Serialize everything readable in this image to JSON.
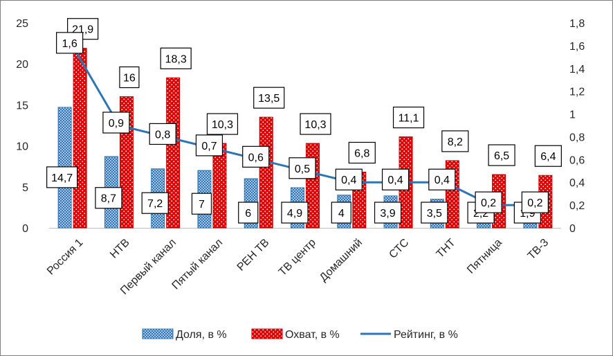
{
  "chart_data": {
    "type": "bar",
    "categories": [
      "Россия 1",
      "НТВ",
      "Первый канал",
      "Пятый канал",
      "РЕН ТВ",
      "ТВ центр",
      "Домашний",
      "СТС",
      "ТНТ",
      "Пятница",
      "ТВ-3"
    ],
    "series": [
      {
        "name": "Доля, в %",
        "type": "bar",
        "axis": "left",
        "values": [
          14.7,
          8.7,
          7.2,
          7,
          6,
          4.9,
          4,
          3.9,
          3.5,
          2.2,
          1.9
        ],
        "labels": [
          "14,7",
          "8,7",
          "7,2",
          "7",
          "6",
          "4,9",
          "4",
          "3,9",
          "3,5",
          "2,2",
          "1,9"
        ],
        "color": "#2e75b6"
      },
      {
        "name": "Охват, в %",
        "type": "bar",
        "axis": "left",
        "values": [
          21.9,
          16,
          18.3,
          10.3,
          13.5,
          10.3,
          6.8,
          11.1,
          8.2,
          6.5,
          6.4
        ],
        "labels": [
          "21,9",
          "16",
          "18,3",
          "10,3",
          "13,5",
          "10,3",
          "6,8",
          "11,1",
          "8,2",
          "6,5",
          "6,4"
        ],
        "color": "#c00000"
      },
      {
        "name": "Рейтинг, в %",
        "type": "line",
        "axis": "right",
        "values": [
          1.6,
          0.9,
          0.8,
          0.7,
          0.6,
          0.5,
          0.4,
          0.4,
          0.4,
          0.2,
          0.2
        ],
        "labels": [
          "1,6",
          "0,9",
          "0,8",
          "0,7",
          "0,6",
          "0,5",
          "0,4",
          "0,4",
          "0,4",
          "0,2",
          "0,2"
        ],
        "color": "#2e75b6"
      }
    ],
    "y_left": {
      "min": 0,
      "max": 25,
      "ticks": [
        "0",
        "5",
        "10",
        "15",
        "20",
        "25"
      ]
    },
    "y_right": {
      "min": 0,
      "max": 1.8,
      "ticks": [
        "0",
        "0,2",
        "0,4",
        "0,6",
        "0,8",
        "1",
        "1,2",
        "1,4",
        "1,6",
        "1,8"
      ]
    },
    "legend": {
      "position": "bottom",
      "items": [
        "Доля, в %",
        "Охват, в %",
        "Рейтинг, в %"
      ]
    },
    "grid": false
  }
}
